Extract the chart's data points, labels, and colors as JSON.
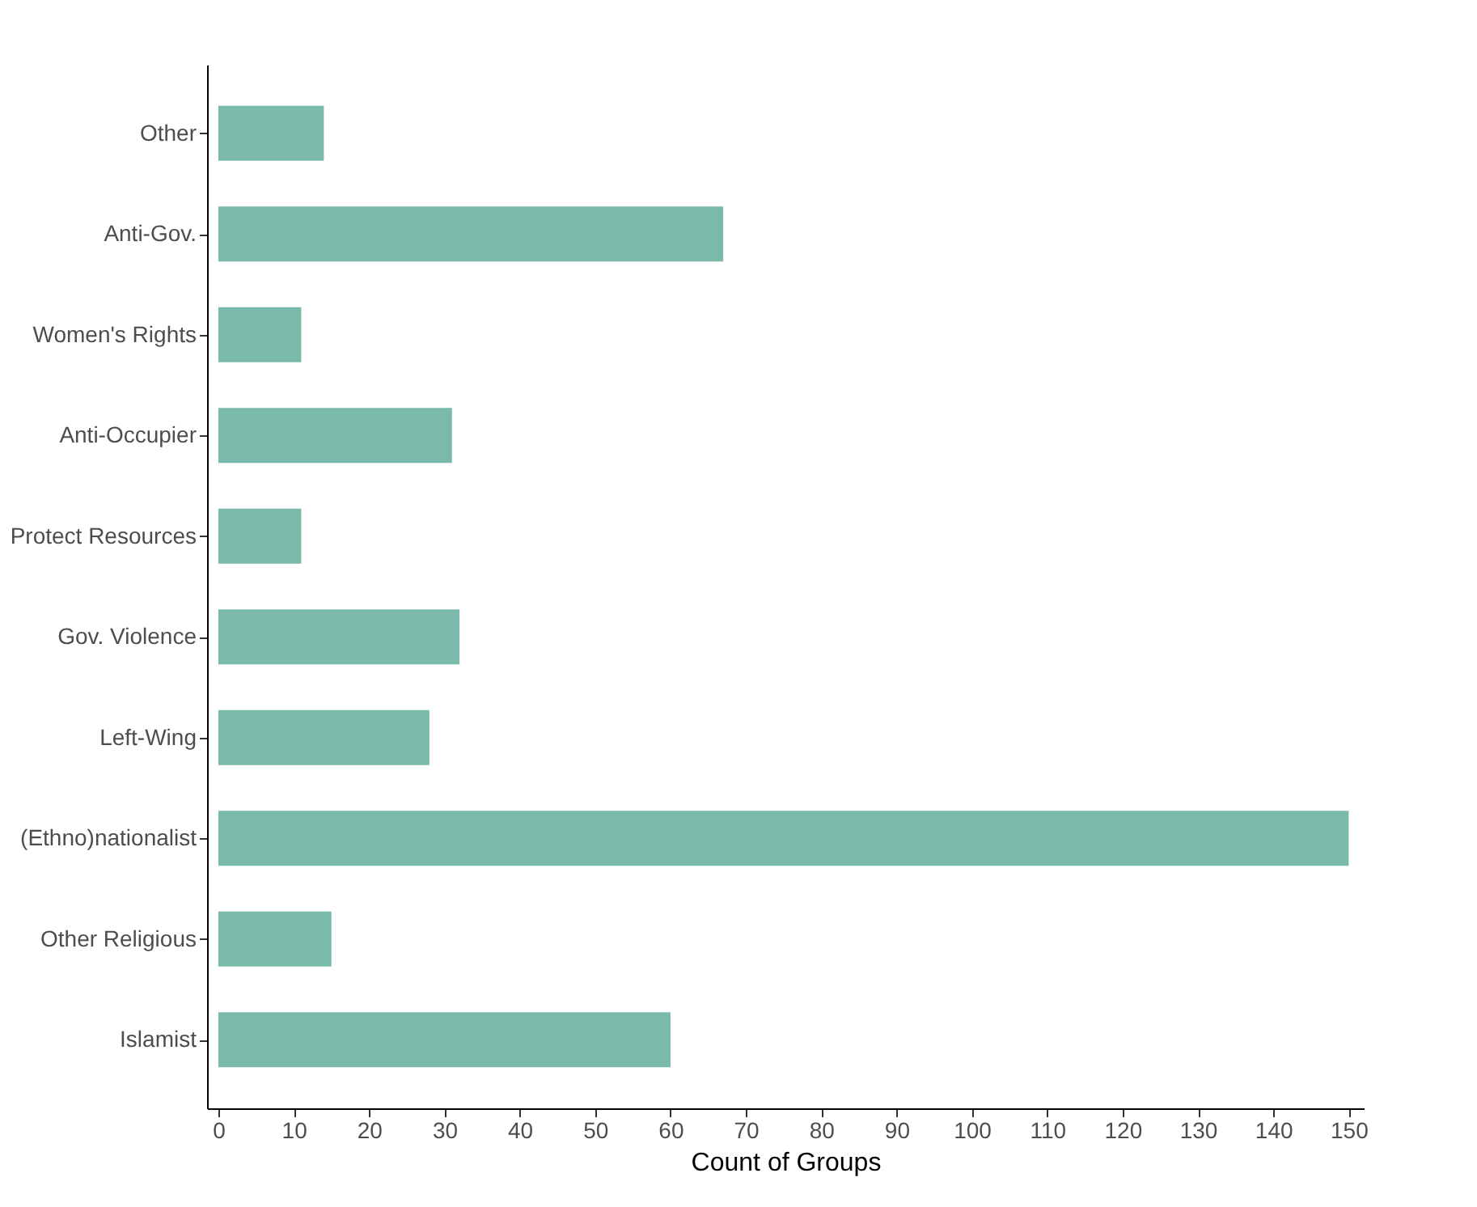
{
  "chart_data": {
    "type": "bar",
    "orientation": "horizontal",
    "xlabel": "Count of Groups",
    "categories": [
      "Other",
      "Anti-Gov.",
      "Women's Rights",
      "Anti-Occupier",
      "Protect Resources",
      "Gov. Violence",
      "Left-Wing",
      "(Ethno)nationalist",
      "Other Religious",
      "Islamist"
    ],
    "values": [
      14,
      67,
      11,
      31,
      11,
      32,
      28,
      150,
      15,
      60
    ],
    "color": "#7abaab",
    "xlim": [
      -1.5,
      152
    ],
    "xticks": [
      0,
      10,
      20,
      30,
      40,
      50,
      60,
      70,
      80,
      90,
      100,
      110,
      120,
      130,
      140,
      150
    ],
    "grid": false
  }
}
